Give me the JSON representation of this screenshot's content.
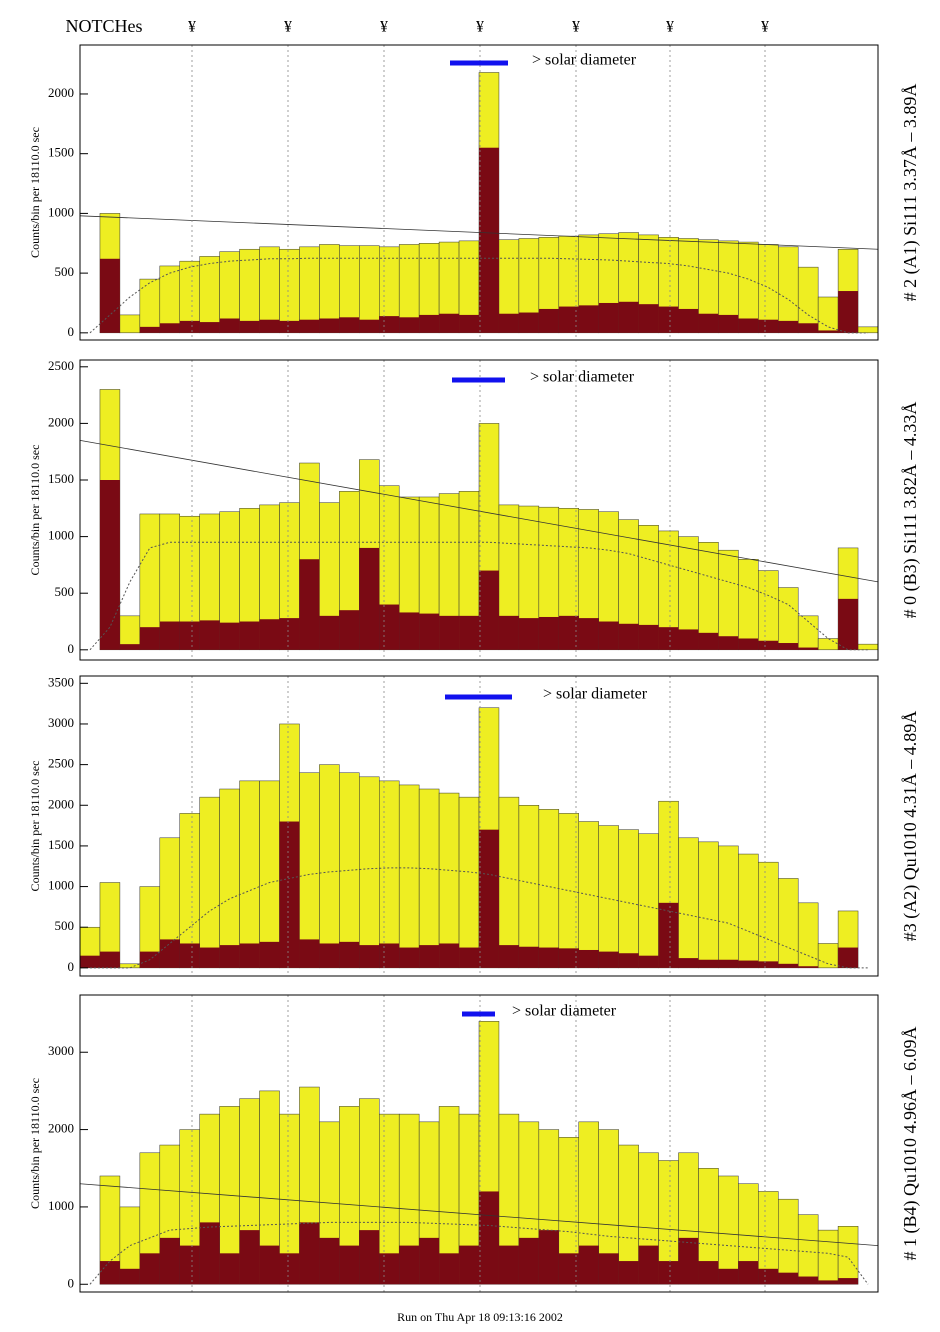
{
  "header": {
    "title": "NOTCHes",
    "notch_symbols": [
      "¥",
      "¥",
      "¥",
      "¥",
      "¥",
      "¥",
      "¥"
    ]
  },
  "footer": "Run on Thu Apr 18 09:13:16 2002",
  "chart_data": [
    {
      "type": "histogram",
      "side_label": "# 2 (A1) Si111  3.37Å – 3.89Å",
      "ylabel": "Counts/bin per  18110.0 sec",
      "annotation": "> solar diameter",
      "ylim": [
        -60,
        2410
      ],
      "yticks": [
        0,
        500,
        1000,
        1500,
        2000
      ],
      "fit_line": [
        980,
        700
      ],
      "series": [
        {
          "color": "#eeee22",
          "values": [
            0,
            1000,
            150,
            450,
            560,
            600,
            640,
            680,
            700,
            720,
            700,
            720,
            740,
            730,
            730,
            720,
            740,
            750,
            760,
            770,
            2180,
            780,
            790,
            800,
            810,
            820,
            830,
            840,
            820,
            800,
            790,
            780,
            770,
            760,
            740,
            720,
            550,
            300,
            700,
            50
          ]
        },
        {
          "color": "#7a0a14",
          "values": [
            0,
            620,
            0,
            50,
            80,
            100,
            90,
            120,
            100,
            110,
            100,
            110,
            120,
            130,
            110,
            140,
            130,
            150,
            160,
            150,
            1550,
            160,
            170,
            200,
            220,
            230,
            250,
            260,
            240,
            220,
            200,
            160,
            150,
            120,
            110,
            100,
            80,
            20,
            350,
            0
          ]
        },
        {
          "color": "#555555",
          "style": "dotted",
          "values": [
            0,
            150,
            300,
            420,
            500,
            550,
            580,
            600,
            610,
            620,
            620,
            625,
            625,
            625,
            625,
            625,
            625,
            625,
            625,
            625,
            625,
            625,
            625,
            625,
            620,
            615,
            610,
            600,
            590,
            580,
            560,
            530,
            500,
            450,
            380,
            280,
            150,
            50,
            0,
            0
          ]
        }
      ]
    },
    {
      "type": "histogram",
      "side_label": "# 0 (B3) Si111  3.82Å – 4.33Å",
      "ylabel": "Counts/bin per  18110.0 sec",
      "annotation": "> solar diameter",
      "ylim": [
        -90,
        2560
      ],
      "yticks": [
        0,
        500,
        1000,
        1500,
        2000,
        2500
      ],
      "fit_line": [
        1850,
        600
      ],
      "series": [
        {
          "color": "#eeee22",
          "values": [
            0,
            2300,
            300,
            1200,
            1200,
            1180,
            1200,
            1220,
            1250,
            1280,
            1300,
            1650,
            1300,
            1400,
            1680,
            1450,
            1350,
            1350,
            1380,
            1400,
            2000,
            1280,
            1270,
            1260,
            1250,
            1240,
            1220,
            1150,
            1100,
            1050,
            1000,
            950,
            880,
            800,
            700,
            550,
            300,
            100,
            900,
            50
          ]
        },
        {
          "color": "#7a0a14",
          "values": [
            0,
            1500,
            50,
            200,
            250,
            250,
            260,
            240,
            250,
            270,
            280,
            800,
            300,
            350,
            900,
            400,
            330,
            320,
            300,
            300,
            700,
            300,
            280,
            290,
            300,
            280,
            250,
            230,
            220,
            200,
            180,
            150,
            120,
            100,
            80,
            60,
            20,
            0,
            450,
            0
          ]
        },
        {
          "color": "#555555",
          "style": "dotted",
          "values": [
            0,
            200,
            600,
            900,
            950,
            950,
            950,
            950,
            950,
            950,
            950,
            950,
            950,
            950,
            950,
            950,
            950,
            950,
            950,
            950,
            950,
            940,
            930,
            920,
            910,
            900,
            880,
            850,
            800,
            750,
            700,
            650,
            600,
            550,
            480,
            400,
            250,
            100,
            0,
            0
          ]
        }
      ]
    },
    {
      "type": "histogram",
      "side_label": "#3 (A2) Qu1010  4.31Å – 4.89Å",
      "ylabel": "Counts/bin per  18110.0 sec",
      "annotation": "> solar diameter",
      "ylim": [
        -100,
        3590
      ],
      "yticks": [
        0,
        500,
        1000,
        1500,
        2000,
        2500,
        3000,
        3500
      ],
      "series": [
        {
          "color": "#eeee22",
          "values": [
            500,
            1050,
            50,
            1000,
            1600,
            1900,
            2100,
            2200,
            2300,
            2300,
            3000,
            2400,
            2500,
            2400,
            2350,
            2300,
            2250,
            2200,
            2150,
            2100,
            3200,
            2100,
            2000,
            1950,
            1900,
            1800,
            1750,
            1700,
            1650,
            2050,
            1600,
            1550,
            1500,
            1400,
            1300,
            1100,
            800,
            300,
            700,
            0
          ]
        },
        {
          "color": "#7a0a14",
          "values": [
            150,
            200,
            0,
            200,
            350,
            300,
            250,
            280,
            300,
            320,
            1800,
            350,
            300,
            320,
            280,
            300,
            250,
            280,
            300,
            250,
            1700,
            280,
            260,
            250,
            240,
            220,
            200,
            180,
            150,
            800,
            120,
            100,
            100,
            90,
            80,
            50,
            20,
            0,
            250,
            0
          ]
        },
        {
          "color": "#555555",
          "style": "dotted",
          "values": [
            0,
            0,
            0,
            100,
            300,
            500,
            700,
            850,
            950,
            1050,
            1100,
            1150,
            1180,
            1200,
            1220,
            1230,
            1230,
            1220,
            1200,
            1180,
            1150,
            1100,
            1050,
            1000,
            950,
            900,
            850,
            800,
            750,
            700,
            650,
            600,
            550,
            450,
            350,
            250,
            150,
            50,
            0,
            0
          ]
        }
      ]
    },
    {
      "type": "histogram",
      "side_label": "# 1 (B4) Qu1010 4.96Å – 6.09Å",
      "ylabel": "Counts/bin per  18110.0 sec",
      "annotation": "> solar diameter",
      "ylim": [
        -100,
        3740
      ],
      "yticks": [
        0,
        1000,
        2000,
        3000
      ],
      "fit_line": [
        1300,
        500
      ],
      "series": [
        {
          "color": "#eeee22",
          "values": [
            0,
            1400,
            1000,
            1700,
            1800,
            2000,
            2200,
            2300,
            2400,
            2500,
            2200,
            2550,
            2100,
            2300,
            2400,
            2200,
            2200,
            2100,
            2300,
            2200,
            3400,
            2200,
            2100,
            2000,
            1900,
            2100,
            2000,
            1800,
            1700,
            1600,
            1700,
            1500,
            1400,
            1300,
            1200,
            1100,
            900,
            700,
            750,
            0
          ]
        },
        {
          "color": "#7a0a14",
          "values": [
            0,
            300,
            200,
            400,
            600,
            500,
            800,
            400,
            700,
            500,
            400,
            800,
            600,
            500,
            700,
            400,
            500,
            600,
            400,
            500,
            1200,
            500,
            600,
            700,
            400,
            500,
            400,
            300,
            500,
            300,
            600,
            300,
            200,
            300,
            200,
            150,
            100,
            50,
            80,
            0
          ]
        },
        {
          "color": "#555555",
          "style": "dotted",
          "values": [
            0,
            300,
            500,
            600,
            700,
            720,
            740,
            750,
            760,
            770,
            780,
            790,
            800,
            800,
            800,
            800,
            800,
            790,
            780,
            770,
            760,
            740,
            720,
            700,
            680,
            650,
            620,
            600,
            580,
            560,
            540,
            520,
            500,
            480,
            460,
            440,
            420,
            400,
            350,
            0
          ]
        }
      ]
    }
  ]
}
